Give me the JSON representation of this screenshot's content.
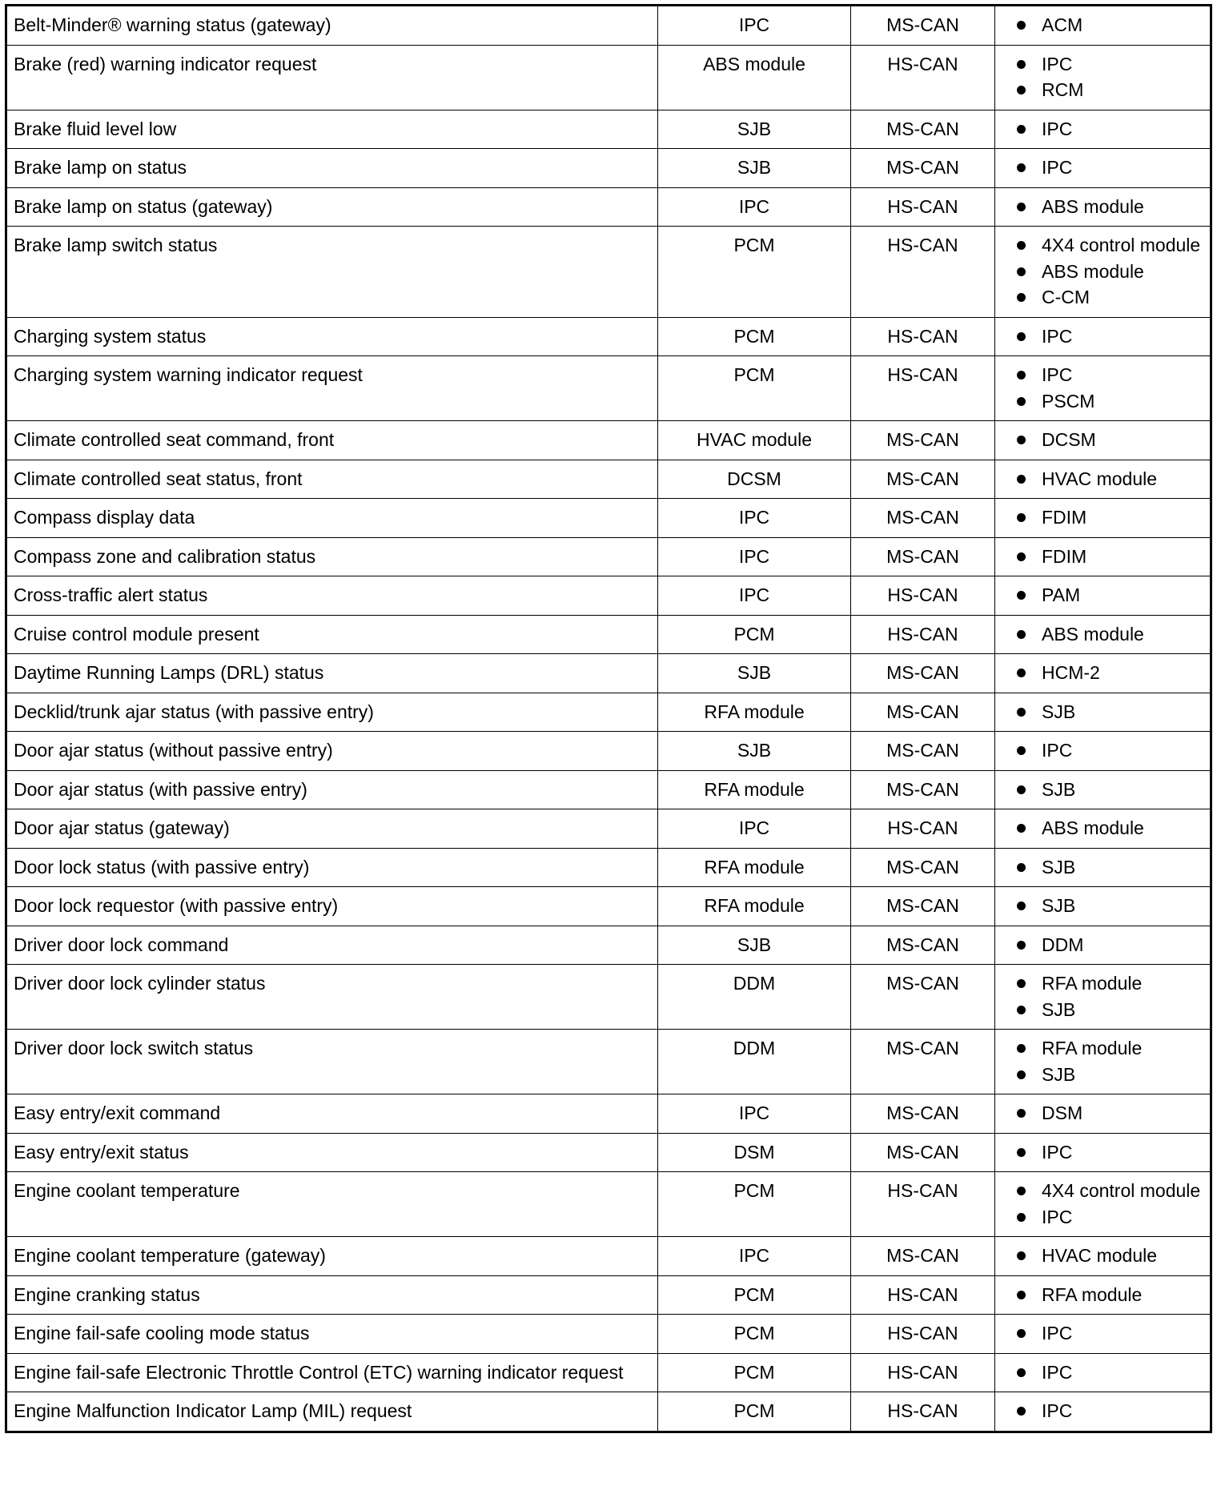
{
  "rows": [
    {
      "message": "Belt-Minder® warning status (gateway)",
      "originator": "IPC",
      "network": "MS-CAN",
      "receivers": [
        "ACM"
      ]
    },
    {
      "message": "Brake (red) warning indicator request",
      "originator": "ABS module",
      "network": "HS-CAN",
      "receivers": [
        "IPC",
        "RCM"
      ]
    },
    {
      "message": "Brake fluid level low",
      "originator": "SJB",
      "network": "MS-CAN",
      "receivers": [
        "IPC"
      ]
    },
    {
      "message": "Brake lamp on status",
      "originator": "SJB",
      "network": "MS-CAN",
      "receivers": [
        "IPC"
      ]
    },
    {
      "message": "Brake lamp on status (gateway)",
      "originator": "IPC",
      "network": "HS-CAN",
      "receivers": [
        "ABS module"
      ]
    },
    {
      "message": "Brake lamp switch status",
      "originator": "PCM",
      "network": "HS-CAN",
      "receivers": [
        "4X4 control module",
        "ABS module",
        "C-CM"
      ]
    },
    {
      "message": "Charging system status",
      "originator": "PCM",
      "network": "HS-CAN",
      "receivers": [
        "IPC"
      ]
    },
    {
      "message": "Charging system warning indicator request",
      "originator": "PCM",
      "network": "HS-CAN",
      "receivers": [
        "IPC",
        "PSCM"
      ]
    },
    {
      "message": "Climate controlled seat command, front",
      "originator": "HVAC module",
      "network": "MS-CAN",
      "receivers": [
        "DCSM"
      ]
    },
    {
      "message": "Climate controlled seat status, front",
      "originator": "DCSM",
      "network": "MS-CAN",
      "receivers": [
        "HVAC module"
      ]
    },
    {
      "message": "Compass display data",
      "originator": "IPC",
      "network": "MS-CAN",
      "receivers": [
        "FDIM"
      ]
    },
    {
      "message": "Compass zone and calibration status",
      "originator": "IPC",
      "network": "MS-CAN",
      "receivers": [
        "FDIM"
      ]
    },
    {
      "message": "Cross-traffic alert status",
      "originator": "IPC",
      "network": "HS-CAN",
      "receivers": [
        "PAM"
      ]
    },
    {
      "message": "Cruise control module present",
      "originator": "PCM",
      "network": "HS-CAN",
      "receivers": [
        "ABS module"
      ]
    },
    {
      "message": "Daytime Running Lamps (DRL) status",
      "originator": "SJB",
      "network": "MS-CAN",
      "receivers": [
        "HCM-2"
      ]
    },
    {
      "message": "Decklid/trunk ajar status (with passive entry)",
      "originator": "RFA module",
      "network": "MS-CAN",
      "receivers": [
        "SJB"
      ]
    },
    {
      "message": "Door ajar status (without passive entry)",
      "originator": "SJB",
      "network": "MS-CAN",
      "receivers": [
        "IPC"
      ]
    },
    {
      "message": "Door ajar status (with passive entry)",
      "originator": "RFA module",
      "network": "MS-CAN",
      "receivers": [
        "SJB"
      ]
    },
    {
      "message": "Door ajar status (gateway)",
      "originator": "IPC",
      "network": "HS-CAN",
      "receivers": [
        "ABS module"
      ]
    },
    {
      "message": "Door lock status (with passive entry)",
      "originator": "RFA module",
      "network": "MS-CAN",
      "receivers": [
        "SJB"
      ]
    },
    {
      "message": "Door lock requestor (with passive entry)",
      "originator": "RFA module",
      "network": "MS-CAN",
      "receivers": [
        "SJB"
      ]
    },
    {
      "message": "Driver door lock command",
      "originator": "SJB",
      "network": "MS-CAN",
      "receivers": [
        "DDM"
      ]
    },
    {
      "message": "Driver door lock cylinder status",
      "originator": "DDM",
      "network": "MS-CAN",
      "receivers": [
        "RFA module",
        "SJB"
      ]
    },
    {
      "message": "Driver door lock switch status",
      "originator": "DDM",
      "network": "MS-CAN",
      "receivers": [
        "RFA module",
        "SJB"
      ]
    },
    {
      "message": "Easy entry/exit command",
      "originator": "IPC",
      "network": "MS-CAN",
      "receivers": [
        "DSM"
      ]
    },
    {
      "message": "Easy entry/exit status",
      "originator": "DSM",
      "network": "MS-CAN",
      "receivers": [
        "IPC"
      ]
    },
    {
      "message": "Engine coolant temperature",
      "originator": "PCM",
      "network": "HS-CAN",
      "receivers": [
        "4X4 control module",
        "IPC"
      ]
    },
    {
      "message": "Engine coolant temperature (gateway)",
      "originator": "IPC",
      "network": "MS-CAN",
      "receivers": [
        "HVAC module"
      ]
    },
    {
      "message": "Engine cranking status",
      "originator": "PCM",
      "network": "HS-CAN",
      "receivers": [
        "RFA module"
      ]
    },
    {
      "message": "Engine fail-safe cooling mode status",
      "originator": "PCM",
      "network": "HS-CAN",
      "receivers": [
        "IPC"
      ]
    },
    {
      "message": "Engine fail-safe Electronic Throttle Control (ETC) warning indicator request",
      "originator": "PCM",
      "network": "HS-CAN",
      "receivers": [
        "IPC"
      ]
    },
    {
      "message": "Engine Malfunction Indicator Lamp (MIL) request",
      "originator": "PCM",
      "network": "HS-CAN",
      "receivers": [
        "IPC"
      ]
    }
  ]
}
